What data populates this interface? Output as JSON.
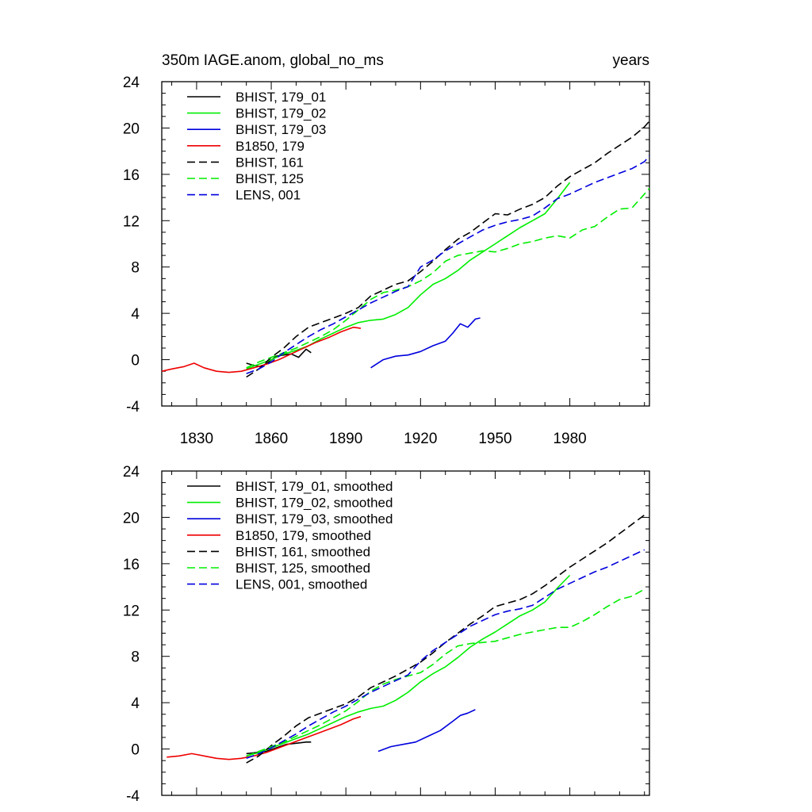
{
  "colors": {
    "black": "#000000",
    "green": "#00ee00",
    "blue": "#0000dd",
    "red": "#ee0000"
  },
  "chart_data": [
    {
      "type": "line",
      "title_left": "350m IAGE.anom, global_no_ms",
      "title_right": "years",
      "xlim": [
        1816,
        2012
      ],
      "ylim": [
        -4,
        24
      ],
      "xticks": [
        1830,
        1860,
        1890,
        1920,
        1950,
        1980
      ],
      "yticks": [
        -4,
        0,
        4,
        8,
        12,
        16,
        20,
        24
      ],
      "show_xtick_labels": true,
      "legend": "top-left",
      "series": [
        {
          "name": "BHIST, 179_01",
          "color": "black",
          "dash": false,
          "x": [
            1850,
            1853,
            1856,
            1859,
            1862,
            1865,
            1868,
            1871,
            1874,
            1876
          ],
          "y": [
            -0.3,
            -0.5,
            -0.6,
            -0.2,
            0.3,
            0.4,
            0.5,
            0.2,
            0.9,
            0.6
          ]
        },
        {
          "name": "BHIST, 179_02",
          "color": "green",
          "dash": false,
          "x": [
            1850,
            1855,
            1860,
            1865,
            1870,
            1875,
            1880,
            1885,
            1890,
            1895,
            1900,
            1905,
            1910,
            1915,
            1920,
            1925,
            1930,
            1935,
            1940,
            1945,
            1950,
            1955,
            1960,
            1965,
            1970,
            1975,
            1980
          ],
          "y": [
            -0.8,
            -0.4,
            0,
            0.5,
            0.8,
            1.2,
            1.8,
            2.3,
            2.8,
            3.2,
            3.4,
            3.5,
            3.9,
            4.5,
            5.6,
            6.5,
            7,
            7.7,
            8.6,
            9.3,
            10,
            10.7,
            11.4,
            12,
            12.6,
            13.9,
            15.3
          ]
        },
        {
          "name": "BHIST, 179_03",
          "color": "blue",
          "dash": false,
          "x": [
            1900,
            1905,
            1910,
            1915,
            1920,
            1925,
            1930,
            1933,
            1936,
            1939,
            1942,
            1944
          ],
          "y": [
            -0.7,
            0,
            0.3,
            0.4,
            0.7,
            1.2,
            1.6,
            2.3,
            3.1,
            2.8,
            3.5,
            3.6
          ]
        },
        {
          "name": "B1850, 179",
          "color": "red",
          "dash": false,
          "x": [
            1816,
            1820,
            1825,
            1829,
            1833,
            1838,
            1843,
            1848,
            1853,
            1858,
            1863,
            1868,
            1873,
            1878,
            1883,
            1888,
            1893,
            1896
          ],
          "y": [
            -1,
            -0.8,
            -0.6,
            -0.3,
            -0.7,
            -1,
            -1.1,
            -1,
            -0.7,
            -0.4,
            0,
            0.5,
            1,
            1.5,
            1.9,
            2.4,
            2.8,
            2.7
          ]
        },
        {
          "name": "BHIST, 161",
          "color": "black",
          "dash": true,
          "x": [
            1850,
            1855,
            1860,
            1865,
            1870,
            1875,
            1880,
            1885,
            1890,
            1895,
            1900,
            1905,
            1910,
            1915,
            1920,
            1925,
            1930,
            1935,
            1940,
            1945,
            1950,
            1955,
            1960,
            1965,
            1970,
            1975,
            1980,
            1985,
            1990,
            1995,
            2000,
            2005,
            2010,
            2012
          ],
          "y": [
            -1.5,
            -0.8,
            0.2,
            1,
            2,
            2.8,
            3.2,
            3.6,
            4,
            4.5,
            5.5,
            6,
            6.5,
            6.8,
            7.6,
            8.5,
            9.5,
            10.4,
            11,
            11.8,
            12.6,
            12.5,
            13,
            13.4,
            14,
            15,
            15.8,
            16.4,
            17,
            17.8,
            18.5,
            19.2,
            20.1,
            20.6
          ]
        },
        {
          "name": "BHIST, 125",
          "color": "green",
          "dash": true,
          "x": [
            1850,
            1855,
            1860,
            1865,
            1870,
            1875,
            1880,
            1885,
            1890,
            1895,
            1900,
            1905,
            1910,
            1915,
            1920,
            1925,
            1930,
            1935,
            1940,
            1945,
            1950,
            1955,
            1960,
            1965,
            1970,
            1975,
            1980,
            1985,
            1990,
            1995,
            2000,
            2005,
            2010,
            2012
          ],
          "y": [
            -0.7,
            -0.2,
            0.2,
            0.6,
            1,
            1.5,
            2,
            2.6,
            3.4,
            4.3,
            5.2,
            5.8,
            6,
            6.3,
            6.8,
            7.5,
            8.5,
            9,
            9.2,
            9.4,
            9.3,
            9.6,
            10,
            10.2,
            10.5,
            10.7,
            10.5,
            11.2,
            11.5,
            12.3,
            13,
            13.1,
            14.3,
            14.8
          ]
        },
        {
          "name": "LENS, 001",
          "color": "blue",
          "dash": true,
          "x": [
            1850,
            1855,
            1860,
            1865,
            1870,
            1875,
            1880,
            1885,
            1890,
            1895,
            1900,
            1905,
            1910,
            1915,
            1920,
            1925,
            1930,
            1935,
            1940,
            1945,
            1950,
            1955,
            1960,
            1965,
            1970,
            1975,
            1980,
            1985,
            1990,
            1995,
            2000,
            2005,
            2010,
            2012
          ],
          "y": [
            -1.2,
            -0.8,
            -0.2,
            0.6,
            1.3,
            2,
            2.6,
            3.1,
            3.7,
            4.3,
            4.9,
            5.4,
            5.9,
            6.3,
            8,
            8.6,
            9.4,
            10,
            10.6,
            11.2,
            11.6,
            11.9,
            12.1,
            12.4,
            13.1,
            13.9,
            14.3,
            14.8,
            15.3,
            15.7,
            16.1,
            16.5,
            17.1,
            17.6
          ]
        }
      ]
    },
    {
      "type": "line",
      "xlim": [
        1816,
        2012
      ],
      "ylim": [
        -4,
        24
      ],
      "xticks": [
        1830,
        1860,
        1890,
        1920,
        1950,
        1980
      ],
      "yticks": [
        -4,
        0,
        4,
        8,
        12,
        16,
        20,
        24
      ],
      "show_xtick_labels": false,
      "legend": "top-left",
      "series": [
        {
          "name": "BHIST, 179_01, smoothed",
          "color": "black",
          "dash": false,
          "x": [
            1850,
            1854,
            1858,
            1862,
            1866,
            1870,
            1874,
            1876
          ],
          "y": [
            -0.4,
            -0.3,
            -0.2,
            0.1,
            0.4,
            0.5,
            0.6,
            0.6
          ]
        },
        {
          "name": "BHIST, 179_02, smoothed",
          "color": "green",
          "dash": false,
          "x": [
            1850,
            1855,
            1860,
            1865,
            1870,
            1875,
            1880,
            1885,
            1890,
            1895,
            1900,
            1905,
            1910,
            1915,
            1920,
            1925,
            1930,
            1935,
            1940,
            1945,
            1950,
            1955,
            1960,
            1965,
            1970,
            1975,
            1980
          ],
          "y": [
            -0.6,
            -0.3,
            0.1,
            0.5,
            0.9,
            1.3,
            1.8,
            2.3,
            2.8,
            3.2,
            3.5,
            3.7,
            4.2,
            4.9,
            5.8,
            6.5,
            7.1,
            7.9,
            8.8,
            9.5,
            10.1,
            10.8,
            11.5,
            12,
            12.7,
            13.9,
            15
          ]
        },
        {
          "name": "BHIST, 179_03, smoothed",
          "color": "blue",
          "dash": false,
          "x": [
            1903,
            1908,
            1913,
            1918,
            1923,
            1928,
            1933,
            1936,
            1939,
            1942
          ],
          "y": [
            -0.2,
            0.2,
            0.4,
            0.6,
            1.1,
            1.6,
            2.4,
            2.9,
            3.1,
            3.4
          ]
        },
        {
          "name": "B1850, 179, smoothed",
          "color": "red",
          "dash": false,
          "x": [
            1818,
            1823,
            1828,
            1833,
            1838,
            1843,
            1848,
            1853,
            1858,
            1863,
            1868,
            1873,
            1878,
            1883,
            1888,
            1893,
            1896
          ],
          "y": [
            -0.7,
            -0.6,
            -0.4,
            -0.6,
            -0.8,
            -0.9,
            -0.8,
            -0.6,
            -0.3,
            0.1,
            0.5,
            0.9,
            1.3,
            1.7,
            2.1,
            2.6,
            2.8
          ]
        },
        {
          "name": "BHIST, 161, smoothed",
          "color": "black",
          "dash": true,
          "x": [
            1850,
            1855,
            1860,
            1865,
            1870,
            1875,
            1880,
            1885,
            1890,
            1895,
            1900,
            1905,
            1910,
            1915,
            1920,
            1925,
            1930,
            1935,
            1940,
            1945,
            1950,
            1955,
            1960,
            1965,
            1970,
            1975,
            1980,
            1985,
            1990,
            1995,
            2000,
            2005,
            2010
          ],
          "y": [
            -1.2,
            -0.6,
            0.3,
            1.1,
            2,
            2.7,
            3.1,
            3.5,
            3.9,
            4.5,
            5.3,
            5.8,
            6.3,
            6.9,
            7.5,
            8.3,
            9.2,
            10,
            10.8,
            11.5,
            12.3,
            12.6,
            12.9,
            13.4,
            14.1,
            14.9,
            15.7,
            16.4,
            17.1,
            17.8,
            18.6,
            19.4,
            20.2
          ]
        },
        {
          "name": "BHIST, 125, smoothed",
          "color": "green",
          "dash": true,
          "x": [
            1850,
            1855,
            1860,
            1865,
            1870,
            1875,
            1880,
            1885,
            1890,
            1895,
            1900,
            1905,
            1910,
            1915,
            1920,
            1925,
            1930,
            1935,
            1940,
            1945,
            1950,
            1955,
            1960,
            1965,
            1970,
            1975,
            1980,
            1985,
            1990,
            1995,
            2000,
            2005,
            2010
          ],
          "y": [
            -0.6,
            -0.2,
            0.2,
            0.6,
            1.1,
            1.6,
            2.1,
            2.7,
            3.3,
            4.1,
            5,
            5.6,
            6,
            6.3,
            6.6,
            7.3,
            8.2,
            8.9,
            9.1,
            9.2,
            9.3,
            9.6,
            9.9,
            10.1,
            10.3,
            10.5,
            10.5,
            11,
            11.6,
            12.3,
            12.9,
            13.2,
            13.8
          ]
        },
        {
          "name": "LENS, 001, smoothed",
          "color": "blue",
          "dash": true,
          "x": [
            1850,
            1855,
            1860,
            1865,
            1870,
            1875,
            1880,
            1885,
            1890,
            1895,
            1900,
            1905,
            1910,
            1915,
            1920,
            1925,
            1930,
            1935,
            1940,
            1945,
            1950,
            1955,
            1960,
            1965,
            1970,
            1975,
            1980,
            1985,
            1990,
            1995,
            2000,
            2005,
            2010
          ],
          "y": [
            -0.8,
            -0.4,
            0.1,
            0.7,
            1.3,
            2,
            2.6,
            3.2,
            3.7,
            4.3,
            4.9,
            5.4,
            5.9,
            6.4,
            7.6,
            8.5,
            9.2,
            9.9,
            10.6,
            11.1,
            11.6,
            11.9,
            12.1,
            12.4,
            13.1,
            13.8,
            14.3,
            14.8,
            15.3,
            15.7,
            16.2,
            16.7,
            17.2
          ]
        }
      ]
    }
  ]
}
